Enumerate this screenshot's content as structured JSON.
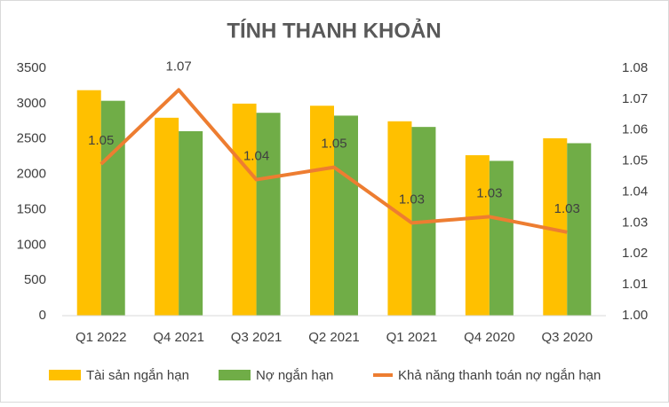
{
  "chart_data": {
    "type": "bar_line",
    "title": "TÍNH THANH KHOẢN",
    "categories": [
      "Q1 2022",
      "Q4 2021",
      "Q3 2021",
      "Q2 2021",
      "Q1 2021",
      "Q4 2020",
      "Q3 2020"
    ],
    "series": [
      {
        "name": "Tài sản ngắn hạn",
        "type": "bar",
        "color": "#FFC000",
        "values": [
          3190,
          2800,
          3000,
          2970,
          2750,
          2270,
          2510
        ]
      },
      {
        "name": "Nợ ngắn hạn",
        "type": "bar",
        "color": "#70AD47",
        "values": [
          3040,
          2610,
          2870,
          2830,
          2670,
          2190,
          2440
        ]
      },
      {
        "name": "Khả năng thanh toán nợ ngắn hạn",
        "type": "line",
        "axis": "y2",
        "color": "#ED7D31",
        "values": [
          1.049,
          1.073,
          1.044,
          1.048,
          1.03,
          1.032,
          1.027
        ],
        "value_labels": [
          "1.05",
          "1.07",
          "1.04",
          "1.05",
          "1.03",
          "1.03",
          "1.03"
        ]
      }
    ],
    "ylim": [
      0,
      3500
    ],
    "yticks": [
      0,
      500,
      1000,
      1500,
      2000,
      2500,
      3000,
      3500
    ],
    "y2lim": [
      1,
      1.08
    ],
    "y2ticks": [
      {
        "value": 1,
        "label": "1.00"
      },
      1.01,
      1.02,
      1.03,
      1.04,
      1.05,
      1.06,
      1.07,
      1.08
    ],
    "grid": false,
    "legend": "bottom"
  }
}
